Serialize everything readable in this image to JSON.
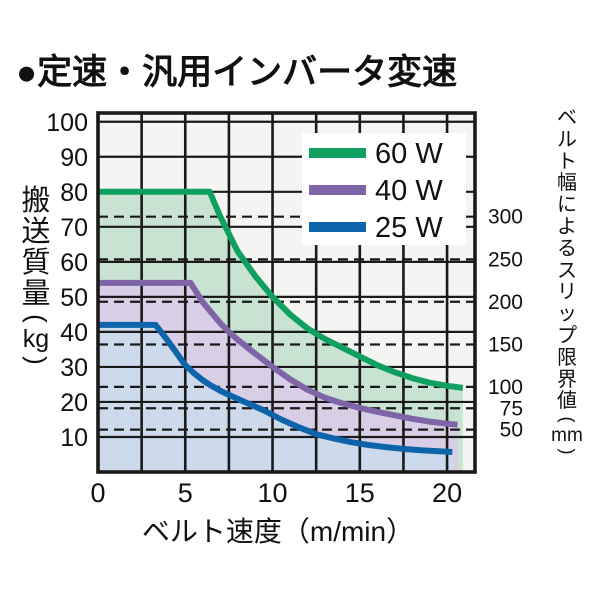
{
  "title": "●定速・汎用インバータ変速",
  "colors": {
    "page_bg": "#ffffff",
    "plot_bg": "#f4f4f2",
    "grid": "#1a1a1a",
    "frame": "#1a1a1a",
    "text": "#111111",
    "legend_bg": "#ffffff"
  },
  "chart_data": {
    "type": "line",
    "title": "定速・汎用インバータ変速",
    "xlabel": "ベルト速度（m/min）",
    "ylabel_left": "搬送質量（kg）",
    "ylabel_right": "ベルト幅によるスリップ限界値（mm）",
    "xlim": [
      0,
      21.6
    ],
    "ylim": [
      0,
      102.5
    ],
    "x_ticks": [
      0,
      5,
      10,
      15,
      20
    ],
    "x_grid_step": 2.5,
    "x_grid_max": 20,
    "y_ticks": [
      10,
      20,
      30,
      40,
      50,
      60,
      70,
      80,
      90,
      100
    ],
    "grid": true,
    "legend_position": "top-right",
    "legend": [
      "60 W",
      "40 W",
      "25 W"
    ],
    "right_axis": {
      "unit": "mm",
      "ticks": [
        {
          "mm": 300,
          "kg": 72.9
        },
        {
          "mm": 250,
          "kg": 60.7
        },
        {
          "mm": 200,
          "kg": 48.6
        },
        {
          "mm": 150,
          "kg": 36.4
        },
        {
          "mm": 100,
          "kg": 24.3
        },
        {
          "mm": 75,
          "kg": 18.2
        },
        {
          "mm": 50,
          "kg": 12.1
        }
      ]
    },
    "series": [
      {
        "name": "60 W",
        "color": "#0fa05f",
        "fill": "#c8e3d2",
        "points": [
          [
            0,
            80
          ],
          [
            6.4,
            80
          ],
          [
            7,
            73
          ],
          [
            7.5,
            68
          ],
          [
            8,
            63
          ],
          [
            8.5,
            59.5
          ],
          [
            9,
            56
          ],
          [
            9.5,
            53
          ],
          [
            10,
            50
          ],
          [
            11,
            45
          ],
          [
            12,
            41
          ],
          [
            13,
            38
          ],
          [
            14,
            35.5
          ],
          [
            15,
            33
          ],
          [
            16,
            30.5
          ],
          [
            17,
            28.5
          ],
          [
            18,
            26.8
          ],
          [
            19,
            25.5
          ],
          [
            20,
            24.6
          ],
          [
            20.9,
            24
          ]
        ]
      },
      {
        "name": "40 W",
        "color": "#7f64a8",
        "fill": "#d8cfe6",
        "points": [
          [
            0,
            54
          ],
          [
            5.3,
            54
          ],
          [
            6,
            48.5
          ],
          [
            6.5,
            45.5
          ],
          [
            7,
            42.5
          ],
          [
            7.5,
            40
          ],
          [
            8,
            37.8
          ],
          [
            9,
            33.8
          ],
          [
            10,
            30
          ],
          [
            11,
            26.5
          ],
          [
            12,
            23.5
          ],
          [
            13,
            21.2
          ],
          [
            14,
            19.6
          ],
          [
            15,
            18.3
          ],
          [
            16,
            17.2
          ],
          [
            17,
            16.2
          ],
          [
            18,
            15.2
          ],
          [
            19,
            14.4
          ],
          [
            20,
            13.8
          ],
          [
            20.6,
            13.5
          ]
        ]
      },
      {
        "name": "25 W",
        "color": "#0e64ab",
        "fill": "#ccdaec",
        "points": [
          [
            0,
            42
          ],
          [
            3.3,
            42
          ],
          [
            4,
            37.5
          ],
          [
            4.5,
            34
          ],
          [
            5,
            30.5
          ],
          [
            5.5,
            28.2
          ],
          [
            6,
            26.2
          ],
          [
            6.5,
            24.6
          ],
          [
            7,
            23.2
          ],
          [
            7.5,
            22
          ],
          [
            8.5,
            19.8
          ],
          [
            9.5,
            17.6
          ],
          [
            10.5,
            15
          ],
          [
            11.5,
            12.8
          ],
          [
            12.5,
            10.8
          ],
          [
            13.5,
            9.6
          ],
          [
            14.5,
            8.5
          ],
          [
            15.5,
            7.7
          ],
          [
            16.5,
            7.1
          ],
          [
            17.5,
            6.6
          ],
          [
            18.5,
            6.2
          ],
          [
            19.5,
            5.9
          ],
          [
            20.3,
            5.7
          ]
        ]
      }
    ]
  }
}
